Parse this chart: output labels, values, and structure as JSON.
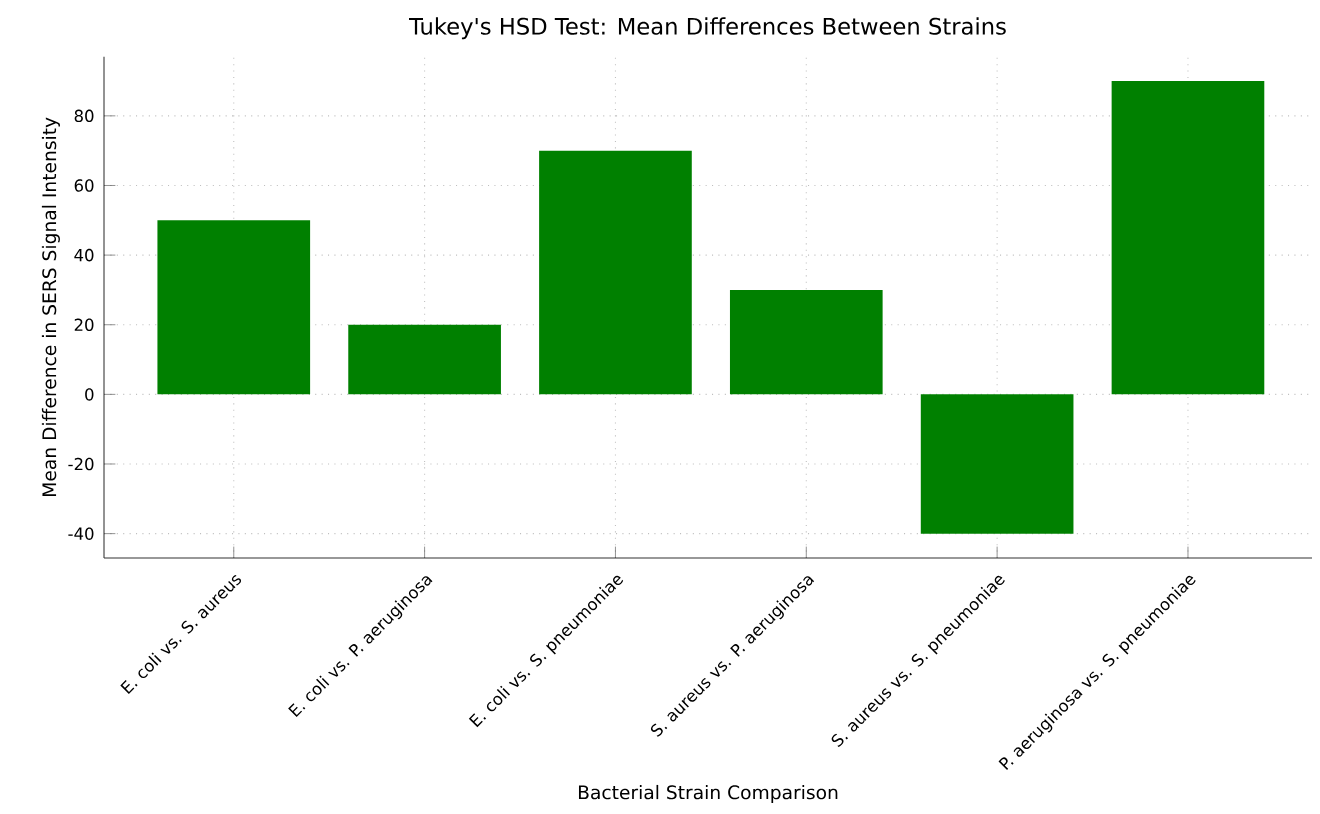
{
  "chart_data": {
    "type": "bar",
    "title": "Tukey's HSD Test: Mean Differences Between Strains",
    "xlabel": "Bacterial Strain Comparison",
    "ylabel": "Mean Difference in SERS Signal Intensity",
    "categories": [
      "E. coli vs. S. aureus",
      "E. coli vs. P. aeruginosa",
      "E. coli vs. S. pneumoniae",
      "S. aureus vs. P. aeruginosa",
      "S. aureus vs. S. pneumoniae",
      "P. aeruginosa vs. S. pneumoniae"
    ],
    "values": [
      50,
      20,
      70,
      30,
      -40,
      90
    ],
    "color": "#008000",
    "ylim": [
      -47,
      97
    ],
    "yticks": [
      -40,
      -20,
      0,
      20,
      40,
      60,
      80
    ],
    "grid": true
  }
}
